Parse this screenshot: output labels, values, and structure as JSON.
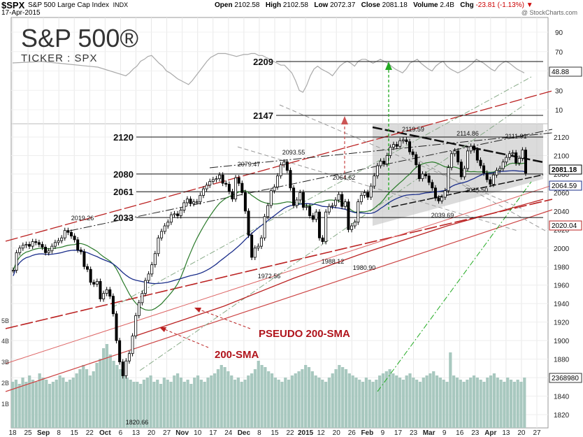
{
  "header": {
    "symbol": "$SPX",
    "name": "S&P 500 Large Cap Index",
    "exchange": "INDX",
    "date": "17-Apr-2015",
    "open_label": "Open",
    "open": "2102.58",
    "high_label": "High",
    "high": "2102.58",
    "low_label": "Low",
    "low": "2072.37",
    "close_label": "Close",
    "close": "2081.18",
    "volume_label": "Volume",
    "volume": "2.4B",
    "chg_label": "Chg",
    "chg": "-23.81 (-1.13%)",
    "brand": "@ StockCharts.com"
  },
  "overlay": {
    "title": "S&P 500®",
    "ticker": "TICKER : SPX"
  },
  "chart_data": {
    "type": "line",
    "title": "",
    "price_ticks": [
      1820,
      1840,
      1860,
      1880,
      1900,
      1920,
      1940,
      1960,
      1980,
      2000,
      2020,
      2040,
      2060,
      2080,
      2100,
      2120
    ],
    "rsi_ticks": [
      10,
      30,
      50,
      70,
      90
    ],
    "volume_ticks": [
      "1B",
      "2B",
      "3B",
      "4B",
      "5B"
    ],
    "x_labels": [
      "18",
      "25",
      "Sep",
      "8",
      "15",
      "22",
      "Oct",
      "6",
      "13",
      "20",
      "27",
      "Nov",
      "10",
      "17",
      "24",
      "Dec",
      "8",
      "15",
      "22",
      "2015",
      "12",
      "20",
      "26",
      "Feb",
      "9",
      "17",
      "23",
      "Mar",
      "9",
      "16",
      "23",
      "Apr",
      "13",
      "20",
      "27"
    ],
    "horizontal_levels": [
      {
        "label": "2209",
        "value": 2209
      },
      {
        "label": "2147",
        "value": 2147
      },
      {
        "label": "2120",
        "value": 2120
      },
      {
        "label": "2080",
        "value": 2080
      },
      {
        "label": "2061",
        "value": 2061
      },
      {
        "label": "2033",
        "value": 2033
      }
    ],
    "value_labels": [
      {
        "text": "2019.26",
        "value": 2019.26
      },
      {
        "text": "2079.47",
        "value": 2079.47
      },
      {
        "text": "2093.55",
        "value": 2093.55
      },
      {
        "text": "2064.62",
        "value": 2064.62
      },
      {
        "text": "1972.56",
        "value": 1972.56
      },
      {
        "text": "1988.12",
        "value": 1988.12
      },
      {
        "text": "1980.90",
        "value": 1980.9
      },
      {
        "text": "2119.59",
        "value": 2119.59
      },
      {
        "text": "2114.86",
        "value": 2114.86
      },
      {
        "text": "2111.91",
        "value": 2111.91
      },
      {
        "text": "2039.69",
        "value": 2039.69
      },
      {
        "text": "2045.50",
        "value": 2045.5
      },
      {
        "text": "1820.66",
        "value": 1820.66
      }
    ],
    "right_tags": [
      {
        "text": "48.88",
        "kind": "rsi"
      },
      {
        "text": "2081.18",
        "kind": "close"
      },
      {
        "text": "2064.59",
        "kind": "ma50"
      },
      {
        "text": "2020.04",
        "kind": "ma200"
      },
      {
        "text": "2368980",
        "kind": "volume"
      }
    ],
    "annotations": [
      {
        "text": "PSEUDO 200-SMA",
        "color": "#b0141c"
      },
      {
        "text": "200-SMA",
        "color": "#b0141c"
      }
    ],
    "price_series": [
      1976,
      1995,
      2000,
      2003,
      2004,
      2002,
      2007,
      2006,
      2004,
      2001,
      1995,
      1997,
      2002,
      2006,
      2008,
      2011,
      2019,
      2017,
      2013,
      2009,
      1998,
      1996,
      1980,
      1977,
      1963,
      1961,
      1964,
      1945,
      1951,
      1955,
      1948,
      1929,
      1900,
      1877,
      1862,
      1878,
      1886,
      1905,
      1927,
      1941,
      1951,
      1965,
      1972,
      1982,
      1994,
      2011,
      2018,
      2024,
      2028,
      2036,
      2037,
      2035,
      2041,
      2049,
      2053,
      2048,
      2050,
      2050,
      2057,
      2064,
      2068,
      2072,
      2074,
      2075,
      2079,
      2070,
      2069,
      2061,
      2053,
      2076,
      2070,
      2060,
      2040,
      2014,
      1990,
      2000,
      2002,
      2011,
      2034,
      2046,
      2062,
      2066,
      2078,
      2090,
      2093,
      2084,
      2065,
      2046,
      2052,
      2060,
      2044,
      2045,
      2035,
      2031,
      2039,
      2011,
      2007,
      2039,
      2045,
      2046,
      2052,
      2058,
      2045,
      2050,
      2020,
      2024,
      2028,
      2050,
      2057,
      2060,
      2055,
      2067,
      2078,
      2089,
      2094,
      2091,
      2100,
      2109,
      2112,
      2110,
      2116,
      2117,
      2115,
      2104,
      2101,
      2090,
      2075,
      2080,
      2078,
      2071,
      2065,
      2054,
      2051,
      2055,
      2062,
      2087,
      2102,
      2105,
      2093,
      2077,
      2086,
      2105,
      2110,
      2106,
      2095,
      2089,
      2081,
      2074,
      2069,
      2079,
      2084,
      2086,
      2093,
      2098,
      2102,
      2103,
      2092,
      2097,
      2106,
      2081
    ],
    "rsi_series": [
      45,
      48,
      52,
      55,
      60,
      62,
      65,
      66,
      62,
      58,
      55,
      50,
      48,
      45,
      42,
      40,
      38,
      36,
      40,
      45,
      50,
      55,
      60,
      64,
      66,
      68,
      68,
      68,
      67,
      66,
      65,
      66,
      67,
      67,
      68,
      68,
      66,
      66,
      64,
      62,
      60,
      58,
      56,
      56,
      52,
      48,
      40,
      30,
      28,
      35,
      45,
      52,
      55,
      52,
      50,
      48,
      45,
      50,
      55,
      58,
      60,
      58,
      55,
      60,
      62,
      62,
      60,
      58,
      60,
      62,
      60,
      58,
      55,
      52,
      50,
      48,
      52,
      58,
      60,
      62,
      58,
      55,
      52,
      50,
      55,
      58,
      60,
      55,
      52,
      50,
      48,
      50,
      52,
      55,
      58,
      62,
      60,
      58,
      55,
      52,
      50,
      55,
      58,
      60,
      58,
      55,
      52,
      50,
      48
    ],
    "volume_series": [
      2.2,
      2.3,
      2.1,
      2.4,
      2.2,
      2.5,
      2.3,
      2.2,
      2.6,
      2.4,
      2.3,
      2.1,
      2.2,
      2.3,
      2.5,
      2.4,
      2.2,
      2.3,
      2.4,
      2.6,
      2.8,
      3.0,
      2.8,
      2.5,
      2.7,
      3.1,
      3.3,
      3.8,
      4.0,
      3.5,
      3.2,
      3.0,
      2.8,
      2.5,
      2.4,
      2.3,
      2.2,
      2.2,
      2.1,
      2.3,
      2.4,
      2.5,
      2.2,
      2.3,
      2.1,
      2.4,
      2.3,
      2.2,
      2.5,
      2.6,
      2.4,
      2.2,
      2.3,
      2.1,
      2.4,
      2.5,
      2.3,
      2.2,
      2.4,
      2.5,
      2.6,
      2.8,
      3.0,
      2.9,
      2.7,
      2.5,
      2.3,
      2.4,
      2.2,
      2.3,
      2.5,
      2.6,
      2.8,
      3.2,
      3.0,
      2.9,
      2.7,
      2.6,
      2.4,
      2.3,
      2.2,
      2.4,
      2.3,
      2.5,
      2.6,
      2.7,
      2.8,
      3.0,
      2.9,
      2.7,
      2.5,
      2.4,
      2.3,
      2.2,
      2.4,
      2.6,
      2.8,
      3.0,
      2.9,
      2.8,
      2.6,
      2.5,
      2.4,
      2.3,
      2.2,
      2.4,
      2.3,
      2.2,
      2.3,
      2.5,
      2.6,
      2.7,
      2.8,
      2.6,
      2.5,
      2.4,
      2.3,
      2.5,
      2.6,
      2.4,
      2.3,
      2.2,
      2.4,
      2.5,
      2.6,
      2.7,
      2.5,
      2.4,
      2.3,
      2.2,
      3.6,
      2.5,
      2.4,
      2.3,
      2.2,
      2.3,
      2.4,
      2.5,
      2.4,
      2.3,
      2.2,
      2.4,
      2.5,
      2.6,
      2.4,
      2.3,
      2.2,
      2.4,
      2.3,
      2.2,
      2.3,
      2.2,
      2.4
    ]
  }
}
